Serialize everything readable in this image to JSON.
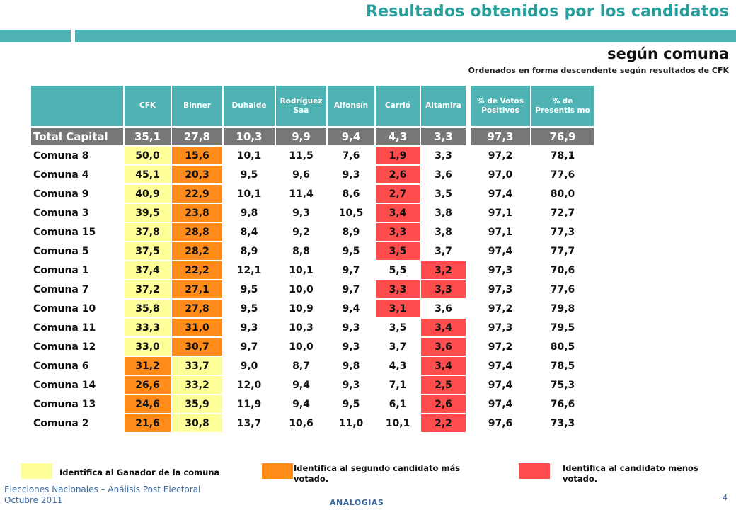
{
  "header": {
    "title": "Resultados obtenidos por los candidatos",
    "subtitle": "según comuna",
    "note": "Ordenados en forma descendente según resultados de CFK"
  },
  "table": {
    "columns": [
      "CFK",
      "Binner",
      "Duhalde",
      "Rodríguez Saa",
      "Alfonsín",
      "Carrió",
      "Altamira",
      "% de Votos Positivos",
      "% de Presentis mo"
    ],
    "rows": [
      {
        "label": "Total Capital",
        "values": [
          "35,1",
          "27,8",
          "10,3",
          "9,9",
          "9,4",
          "4,3",
          "3,3",
          "97,3",
          "76,9"
        ],
        "hl": [
          "",
          "",
          "",
          "",
          "",
          "",
          "",
          "",
          ""
        ]
      },
      {
        "label": "Comuna 8",
        "values": [
          "50,0",
          "15,6",
          "10,1",
          "11,5",
          "7,6",
          "1,9",
          "3,3",
          "97,2",
          "78,1"
        ],
        "hl": [
          "y",
          "o",
          "",
          "",
          "",
          "r",
          "",
          "",
          ""
        ]
      },
      {
        "label": "Comuna 4",
        "values": [
          "45,1",
          "20,3",
          "9,5",
          "9,6",
          "9,3",
          "2,6",
          "3,6",
          "97,0",
          "77,6"
        ],
        "hl": [
          "y",
          "o",
          "",
          "",
          "",
          "r",
          "",
          "",
          ""
        ]
      },
      {
        "label": "Comuna 9",
        "values": [
          "40,9",
          "22,9",
          "10,1",
          "11,4",
          "8,6",
          "2,7",
          "3,5",
          "97,4",
          "80,0"
        ],
        "hl": [
          "y",
          "o",
          "",
          "",
          "",
          "r",
          "",
          "",
          ""
        ]
      },
      {
        "label": "Comuna 3",
        "values": [
          "39,5",
          "23,8",
          "9,8",
          "9,3",
          "10,5",
          "3,4",
          "3,8",
          "97,1",
          "72,7"
        ],
        "hl": [
          "y",
          "o",
          "",
          "",
          "",
          "r",
          "",
          "",
          ""
        ]
      },
      {
        "label": "Comuna 15",
        "values": [
          "37,8",
          "28,8",
          "8,4",
          "9,2",
          "8,9",
          "3,3",
          "3,8",
          "97,1",
          "77,3"
        ],
        "hl": [
          "y",
          "o",
          "",
          "",
          "",
          "r",
          "",
          "",
          ""
        ]
      },
      {
        "label": "Comuna 5",
        "values": [
          "37,5",
          "28,2",
          "8,9",
          "8,8",
          "9,5",
          "3,5",
          "3,7",
          "97,4",
          "77,7"
        ],
        "hl": [
          "y",
          "o",
          "",
          "",
          "",
          "r",
          "",
          "",
          ""
        ]
      },
      {
        "label": "Comuna 1",
        "values": [
          "37,4",
          "22,2",
          "12,1",
          "10,1",
          "9,7",
          "5,5",
          "3,2",
          "97,3",
          "70,6"
        ],
        "hl": [
          "y",
          "o",
          "",
          "",
          "",
          "",
          "r",
          "",
          ""
        ]
      },
      {
        "label": "Comuna 7",
        "values": [
          "37,2",
          "27,1",
          "9,5",
          "10,0",
          "9,7",
          "3,3",
          "3,3",
          "97,3",
          "77,6"
        ],
        "hl": [
          "y",
          "o",
          "",
          "",
          "",
          "r",
          "r",
          "",
          ""
        ]
      },
      {
        "label": "Comuna 10",
        "values": [
          "35,8",
          "27,8",
          "9,5",
          "10,9",
          "9,4",
          "3,1",
          "3,6",
          "97,2",
          "79,8"
        ],
        "hl": [
          "y",
          "o",
          "",
          "",
          "",
          "r",
          "",
          "",
          ""
        ]
      },
      {
        "label": "Comuna 11",
        "values": [
          "33,3",
          "31,0",
          "9,3",
          "10,3",
          "9,3",
          "3,5",
          "3,4",
          "97,3",
          "79,5"
        ],
        "hl": [
          "y",
          "o",
          "",
          "",
          "",
          "",
          "r",
          "",
          ""
        ]
      },
      {
        "label": "Comuna 12",
        "values": [
          "33,0",
          "30,7",
          "9,7",
          "10,0",
          "9,3",
          "3,7",
          "3,6",
          "97,2",
          "80,5"
        ],
        "hl": [
          "y",
          "o",
          "",
          "",
          "",
          "",
          "r",
          "",
          ""
        ]
      },
      {
        "label": "Comuna 6",
        "values": [
          "31,2",
          "33,7",
          "9,0",
          "8,7",
          "9,8",
          "4,3",
          "3,4",
          "97,4",
          "78,5"
        ],
        "hl": [
          "o",
          "y",
          "",
          "",
          "",
          "",
          "r",
          "",
          ""
        ]
      },
      {
        "label": "Comuna 14",
        "values": [
          "26,6",
          "33,2",
          "12,0",
          "9,4",
          "9,3",
          "7,1",
          "2,5",
          "97,4",
          "75,3"
        ],
        "hl": [
          "o",
          "y",
          "",
          "",
          "",
          "",
          "r",
          "",
          ""
        ]
      },
      {
        "label": "Comuna 13",
        "values": [
          "24,6",
          "35,9",
          "11,9",
          "9,4",
          "9,5",
          "6,1",
          "2,6",
          "97,4",
          "76,6"
        ],
        "hl": [
          "o",
          "y",
          "",
          "",
          "",
          "",
          "r",
          "",
          ""
        ]
      },
      {
        "label": "Comuna 2",
        "values": [
          "21,6",
          "30,8",
          "13,7",
          "10,6",
          "11,0",
          "10,1",
          "2,2",
          "97,6",
          "73,3"
        ],
        "hl": [
          "o",
          "y",
          "",
          "",
          "",
          "",
          "r",
          "",
          ""
        ]
      }
    ]
  },
  "legend": {
    "winner": "Identifica al Ganador de la comuna",
    "second": "Identifica al segundo candidato más votado.",
    "least": "Identifica al candidato menos votado."
  },
  "colors": {
    "accent": "#4fb3b3",
    "winner": "#ffff99",
    "second": "#ff8c1a",
    "least": "#ff4d4d",
    "total_row": "#777777"
  },
  "footer": {
    "line1": "Elecciones Nacionales – Análisis Post Electoral",
    "line2": "Octubre 2011",
    "brand": "ANALOGIAS",
    "page": "4"
  }
}
